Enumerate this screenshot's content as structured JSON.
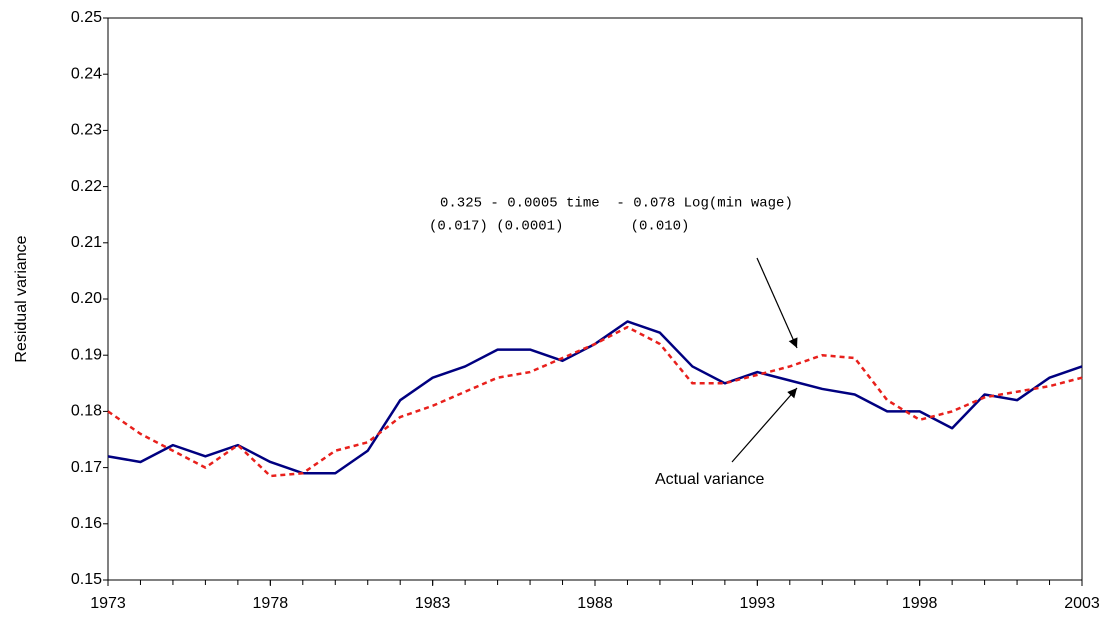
{
  "chart_data": {
    "type": "line",
    "y_label": "Residual variance",
    "x": [
      1973,
      1974,
      1975,
      1976,
      1977,
      1978,
      1979,
      1980,
      1981,
      1982,
      1983,
      1984,
      1985,
      1986,
      1987,
      1988,
      1989,
      1990,
      1991,
      1992,
      1993,
      1994,
      1995,
      1996,
      1997,
      1998,
      1999,
      2000,
      2001,
      2002,
      2003
    ],
    "series": [
      {
        "name": "Actual variance",
        "color": "#000080",
        "dash": false,
        "values": [
          0.172,
          0.171,
          0.174,
          0.172,
          0.174,
          0.171,
          0.169,
          0.169,
          0.173,
          0.182,
          0.186,
          0.188,
          0.191,
          0.191,
          0.189,
          0.192,
          0.196,
          0.194,
          0.188,
          0.185,
          0.187,
          0.1855,
          0.184,
          0.183,
          0.18,
          0.18,
          0.177,
          0.183,
          0.182,
          0.186,
          0.188
        ]
      },
      {
        "color": "#e8201c",
        "dash": true,
        "values": [
          0.18,
          0.176,
          0.173,
          0.17,
          0.174,
          0.1685,
          0.169,
          0.173,
          0.1745,
          0.179,
          0.181,
          0.1835,
          0.186,
          0.187,
          0.1895,
          0.192,
          0.195,
          0.192,
          0.185,
          0.185,
          0.1865,
          0.188,
          0.19,
          0.1895,
          0.182,
          0.1785,
          0.18,
          0.1825,
          0.1835,
          0.1845,
          0.186
        ]
      }
    ],
    "xlim": [
      1973,
      2003
    ],
    "xticks": [
      1973,
      1978,
      1983,
      1988,
      1993,
      1998,
      2003
    ],
    "ylim": [
      0.15,
      0.25
    ],
    "yticks": [
      0.15,
      0.16,
      0.17,
      0.18,
      0.19,
      {
        "value": 0.2,
        "label": "0.20"
      },
      0.21,
      0.22,
      0.23,
      0.24,
      0.25
    ],
    "annotations": [
      "0.325 - 0.0005 time  - 0.078 Log(min wage)",
      "(0.017) (0.0001)        (0.010)"
    ]
  }
}
